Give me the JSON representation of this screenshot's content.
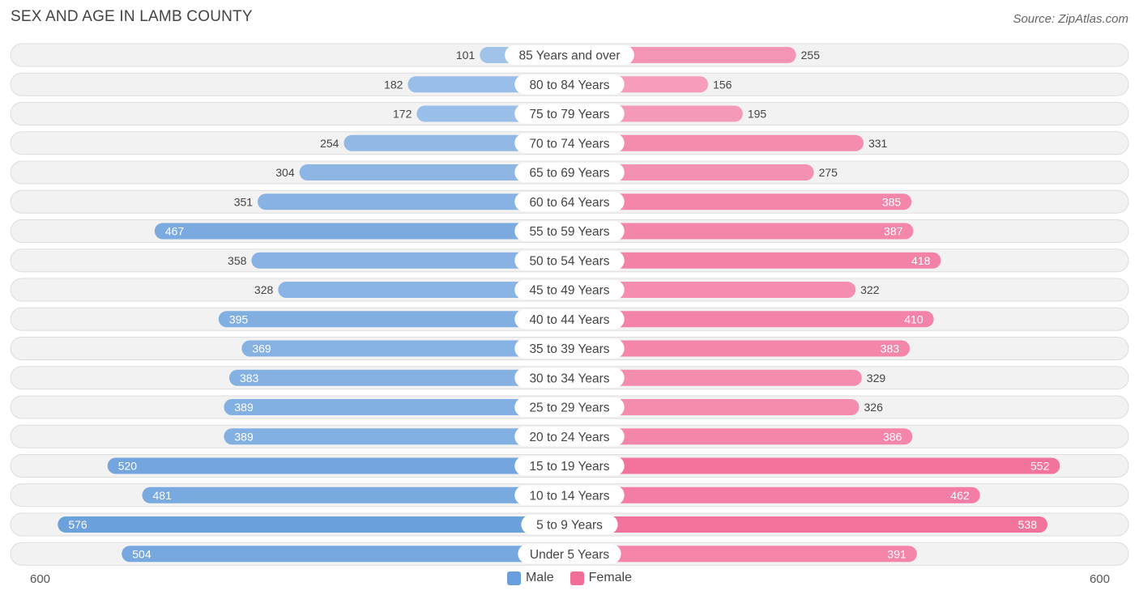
{
  "header": {
    "title": "SEX AND AGE IN LAMB COUNTY",
    "source": "Source: ZipAtlas.com"
  },
  "axis": {
    "left_label": "600",
    "right_label": "600"
  },
  "legend": {
    "male_label": "Male",
    "female_label": "Female"
  },
  "colors": {
    "male_strong": "#6a9fdb",
    "male_light": "#a8c8ec",
    "female_strong": "#f26d98",
    "female_light": "#f6a9c3",
    "row_bg": "#f2f2f2",
    "row_border": "#dddddd"
  },
  "chart_data": {
    "type": "bar",
    "orientation": "horizontal-diverging",
    "title": "SEX AND AGE IN LAMB COUNTY",
    "xlim": [
      0,
      600
    ],
    "categories": [
      "85 Years and over",
      "80 to 84 Years",
      "75 to 79 Years",
      "70 to 74 Years",
      "65 to 69 Years",
      "60 to 64 Years",
      "55 to 59 Years",
      "50 to 54 Years",
      "45 to 49 Years",
      "40 to 44 Years",
      "35 to 39 Years",
      "30 to 34 Years",
      "25 to 29 Years",
      "20 to 24 Years",
      "15 to 19 Years",
      "10 to 14 Years",
      "5 to 9 Years",
      "Under 5 Years"
    ],
    "series": [
      {
        "name": "Male",
        "values": [
          101,
          182,
          172,
          254,
          304,
          351,
          467,
          358,
          328,
          395,
          369,
          383,
          389,
          389,
          520,
          481,
          576,
          504
        ]
      },
      {
        "name": "Female",
        "values": [
          255,
          156,
          195,
          331,
          275,
          385,
          387,
          418,
          322,
          410,
          383,
          329,
          326,
          386,
          552,
          462,
          538,
          391
        ]
      }
    ],
    "legend_position": "bottom"
  }
}
